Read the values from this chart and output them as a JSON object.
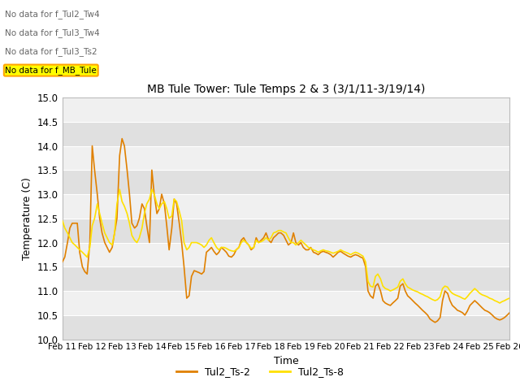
{
  "title": "MB Tule Tower: Tule Temps 2 & 3 (3/1/11-3/19/14)",
  "xlabel": "Time",
  "ylabel": "Temperature (C)",
  "ylim": [
    10.0,
    15.0
  ],
  "yticks": [
    10.0,
    10.5,
    11.0,
    11.5,
    12.0,
    12.5,
    13.0,
    13.5,
    14.0,
    14.5,
    15.0
  ],
  "xtick_labels": [
    "Feb 11",
    "Feb 12",
    "Feb 13",
    "Feb 14",
    "Feb 15",
    "Feb 16",
    "Feb 17",
    "Feb 18",
    "Feb 19",
    "Feb 20",
    "Feb 21",
    "Feb 22",
    "Feb 23",
    "Feb 24",
    "Feb 25",
    "Feb 26"
  ],
  "color_ts2": "#E08000",
  "color_ts8": "#FFE000",
  "bg_light": "#F0F0F0",
  "bg_dark": "#E0E0E0",
  "nodata_text": [
    "No data for f_Tul2_Tw4",
    "No data for f_Tul3_Tw4",
    "No data for f_Tul3_Ts2",
    "No data for f_MB_Tule"
  ],
  "nodata_highlight_index": 3,
  "legend_labels": [
    "Tul2_Ts-2",
    "Tul2_Ts-8"
  ],
  "ts2_x": [
    0.0,
    0.08,
    0.17,
    0.25,
    0.33,
    0.42,
    0.5,
    0.58,
    0.67,
    0.75,
    0.83,
    0.92,
    1.0,
    1.08,
    1.17,
    1.25,
    1.33,
    1.42,
    1.5,
    1.58,
    1.67,
    1.75,
    1.83,
    1.92,
    2.0,
    2.08,
    2.17,
    2.25,
    2.33,
    2.42,
    2.5,
    2.58,
    2.67,
    2.75,
    2.83,
    2.92,
    3.0,
    3.08,
    3.17,
    3.25,
    3.33,
    3.42,
    3.5,
    3.58,
    3.67,
    3.75,
    3.83,
    3.92,
    4.0,
    4.08,
    4.17,
    4.25,
    4.33,
    4.42,
    4.5,
    4.58,
    4.67,
    4.75,
    4.83,
    4.92,
    5.0,
    5.08,
    5.17,
    5.25,
    5.33,
    5.42,
    5.5,
    5.58,
    5.67,
    5.75,
    5.83,
    5.92,
    6.0,
    6.08,
    6.17,
    6.25,
    6.33,
    6.42,
    6.5,
    6.58,
    6.67,
    6.75,
    6.83,
    6.92,
    7.0,
    7.08,
    7.17,
    7.25,
    7.33,
    7.42,
    7.5,
    7.58,
    7.67,
    7.75,
    7.83,
    7.92,
    8.0,
    8.08,
    8.17,
    8.25,
    8.33,
    8.42,
    8.5,
    8.58,
    8.67,
    8.75,
    8.83,
    8.92,
    9.0,
    9.08,
    9.17,
    9.25,
    9.33,
    9.42,
    9.5,
    9.58,
    9.67,
    9.75,
    9.83,
    9.92,
    10.0,
    10.08,
    10.17,
    10.25,
    10.33,
    10.42,
    10.5,
    10.58,
    10.67,
    10.75,
    10.83,
    10.92,
    11.0,
    11.08,
    11.17,
    11.25,
    11.33,
    11.42,
    11.5,
    11.58,
    11.67,
    11.75,
    11.83,
    11.92,
    12.0,
    12.08,
    12.17,
    12.25,
    12.33,
    12.42,
    12.5,
    12.58,
    12.67,
    12.75,
    12.83,
    12.92,
    13.0,
    13.08,
    13.17,
    13.25,
    13.33,
    13.42,
    13.5,
    13.58,
    13.67,
    13.75,
    13.83,
    13.92,
    14.0,
    14.08,
    14.17,
    14.25,
    14.33,
    14.42,
    14.5,
    14.58,
    14.67,
    14.75,
    14.83,
    14.92,
    15.0
  ],
  "ts2_y": [
    11.6,
    11.7,
    12.0,
    12.3,
    12.4,
    12.4,
    12.4,
    11.8,
    11.5,
    11.4,
    11.35,
    12.0,
    14.0,
    13.5,
    13.0,
    12.5,
    12.2,
    12.0,
    11.9,
    11.8,
    11.9,
    12.2,
    12.5,
    13.8,
    14.15,
    14.0,
    13.5,
    13.0,
    12.4,
    12.3,
    12.35,
    12.5,
    12.8,
    12.7,
    12.35,
    12.0,
    13.5,
    13.0,
    12.6,
    12.7,
    13.0,
    12.8,
    12.35,
    11.85,
    12.3,
    12.9,
    12.8,
    12.4,
    12.0,
    11.5,
    10.85,
    10.9,
    11.3,
    11.42,
    11.4,
    11.38,
    11.35,
    11.4,
    11.8,
    11.85,
    11.9,
    11.82,
    11.75,
    11.8,
    11.9,
    11.85,
    11.8,
    11.72,
    11.7,
    11.75,
    11.85,
    11.9,
    12.05,
    12.1,
    12.0,
    11.95,
    11.85,
    11.9,
    12.1,
    12.0,
    12.05,
    12.1,
    12.2,
    12.05,
    12.0,
    12.1,
    12.15,
    12.2,
    12.2,
    12.15,
    12.05,
    11.95,
    12.0,
    12.2,
    12.0,
    11.95,
    12.0,
    11.9,
    11.85,
    11.85,
    11.9,
    11.8,
    11.78,
    11.75,
    11.8,
    11.82,
    11.8,
    11.78,
    11.75,
    11.7,
    11.75,
    11.8,
    11.82,
    11.78,
    11.75,
    11.72,
    11.7,
    11.73,
    11.75,
    11.73,
    11.7,
    11.68,
    11.5,
    11.0,
    10.9,
    10.85,
    11.1,
    11.15,
    11.0,
    10.8,
    10.75,
    10.72,
    10.7,
    10.75,
    10.8,
    10.85,
    11.1,
    11.15,
    11.0,
    10.9,
    10.85,
    10.8,
    10.75,
    10.7,
    10.65,
    10.6,
    10.55,
    10.5,
    10.42,
    10.38,
    10.35,
    10.38,
    10.45,
    10.8,
    11.0,
    10.95,
    10.8,
    10.7,
    10.65,
    10.6,
    10.58,
    10.55,
    10.5,
    10.58,
    10.7,
    10.75,
    10.8,
    10.75,
    10.7,
    10.65,
    10.6,
    10.58,
    10.55,
    10.5,
    10.45,
    10.42,
    10.4,
    10.42,
    10.45,
    10.5,
    10.55
  ],
  "ts8_y": [
    12.45,
    12.3,
    12.2,
    12.1,
    12.0,
    11.95,
    11.9,
    11.85,
    11.8,
    11.75,
    11.7,
    11.9,
    12.35,
    12.5,
    12.8,
    12.6,
    12.4,
    12.2,
    12.1,
    12.0,
    11.95,
    12.2,
    12.8,
    13.1,
    12.85,
    12.75,
    12.6,
    12.4,
    12.15,
    12.05,
    12.0,
    12.1,
    12.3,
    12.6,
    12.8,
    12.9,
    13.1,
    13.0,
    12.8,
    12.7,
    12.8,
    12.85,
    12.7,
    12.5,
    12.55,
    12.9,
    12.85,
    12.65,
    12.45,
    12.0,
    11.85,
    11.9,
    12.0,
    12.0,
    12.0,
    11.98,
    11.95,
    11.9,
    11.95,
    12.05,
    12.1,
    12.0,
    11.9,
    11.85,
    11.9,
    11.9,
    11.88,
    11.85,
    11.83,
    11.82,
    11.85,
    11.9,
    12.0,
    12.05,
    12.0,
    11.95,
    11.88,
    11.9,
    12.05,
    12.0,
    12.02,
    12.05,
    12.1,
    12.05,
    12.1,
    12.2,
    12.22,
    12.25,
    12.25,
    12.22,
    12.2,
    12.1,
    12.0,
    12.0,
    11.95,
    12.0,
    12.05,
    12.0,
    11.95,
    11.9,
    11.88,
    11.85,
    11.83,
    11.8,
    11.83,
    11.85,
    11.83,
    11.82,
    11.8,
    11.78,
    11.8,
    11.82,
    11.85,
    11.82,
    11.8,
    11.78,
    11.75,
    11.78,
    11.8,
    11.78,
    11.75,
    11.72,
    11.6,
    11.2,
    11.1,
    11.08,
    11.3,
    11.35,
    11.25,
    11.1,
    11.05,
    11.03,
    11.0,
    11.02,
    11.05,
    11.08,
    11.2,
    11.25,
    11.15,
    11.08,
    11.05,
    11.02,
    11.0,
    10.98,
    10.95,
    10.93,
    10.9,
    10.88,
    10.85,
    10.82,
    10.8,
    10.82,
    10.88,
    11.05,
    11.1,
    11.08,
    11.0,
    10.95,
    10.92,
    10.9,
    10.88,
    10.85,
    10.83,
    10.88,
    10.95,
    11.0,
    11.05,
    11.0,
    10.95,
    10.92,
    10.9,
    10.88,
    10.85,
    10.83,
    10.8,
    10.78,
    10.75,
    10.78,
    10.8,
    10.83,
    10.85
  ]
}
